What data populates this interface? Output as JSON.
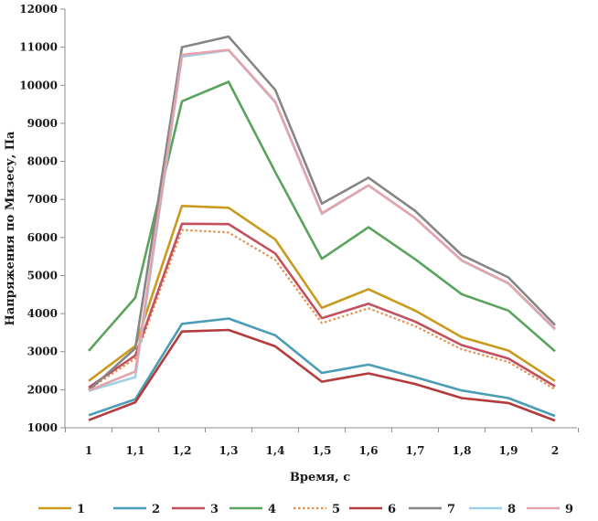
{
  "chart_data": {
    "type": "line",
    "title": "",
    "xlabel": "Время, с",
    "ylabel": "Напряжения по Мизесу, Па",
    "x_ticks": [
      "1",
      "1,1",
      "1,2",
      "1,3",
      "1,4",
      "1,5",
      "1,6",
      "1,7",
      "1,8",
      "1,9",
      "2"
    ],
    "y_ticks": [
      "1000",
      "2000",
      "3000",
      "4000",
      "5000",
      "6000",
      "7000",
      "8000",
      "9000",
      "10000",
      "11000",
      "12000"
    ],
    "ylim": [
      1000,
      12000
    ],
    "grid": false,
    "legend_position": "bottom",
    "series": [
      {
        "name": "1",
        "color": "#c99a1e",
        "dashed": false,
        "values": [
          2230,
          3150,
          6830,
          6780,
          5950,
          4150,
          4640,
          4080,
          3380,
          3030,
          2230
        ]
      },
      {
        "name": "2",
        "color": "#4a9db5",
        "dashed": false,
        "values": [
          1330,
          1750,
          3730,
          3870,
          3430,
          2440,
          2660,
          2330,
          1980,
          1780,
          1310
        ]
      },
      {
        "name": "3",
        "color": "#c2505e",
        "dashed": false,
        "values": [
          2060,
          2900,
          6360,
          6350,
          5580,
          3880,
          4260,
          3790,
          3170,
          2820,
          2090
        ]
      },
      {
        "name": "4",
        "color": "#5aa35c",
        "dashed": false,
        "values": [
          3020,
          4420,
          9580,
          10090,
          7720,
          5440,
          6270,
          5430,
          4510,
          4080,
          3010
        ]
      },
      {
        "name": "5",
        "color": "#e6904b",
        "dashed": true,
        "values": [
          2010,
          2820,
          6200,
          6130,
          5410,
          3750,
          4140,
          3670,
          3060,
          2730,
          2010
        ]
      },
      {
        "name": "6",
        "color": "#b43b3b",
        "dashed": false,
        "values": [
          1200,
          1670,
          3530,
          3570,
          3140,
          2210,
          2430,
          2150,
          1780,
          1650,
          1190
        ]
      },
      {
        "name": "7",
        "color": "#858585",
        "dashed": false,
        "values": [
          1980,
          3090,
          11000,
          11280,
          9880,
          6890,
          7570,
          6700,
          5540,
          4950,
          3700
        ]
      },
      {
        "name": "8",
        "color": "#9fd0ea",
        "dashed": false,
        "values": [
          1970,
          2330,
          10750,
          10920,
          9550,
          6620,
          7370,
          6510,
          5390,
          4790,
          3580
        ]
      },
      {
        "name": "9",
        "color": "#e4a3aa",
        "dashed": false,
        "values": [
          1980,
          2480,
          10800,
          10930,
          9570,
          6640,
          7370,
          6510,
          5400,
          4800,
          3600
        ]
      }
    ]
  }
}
